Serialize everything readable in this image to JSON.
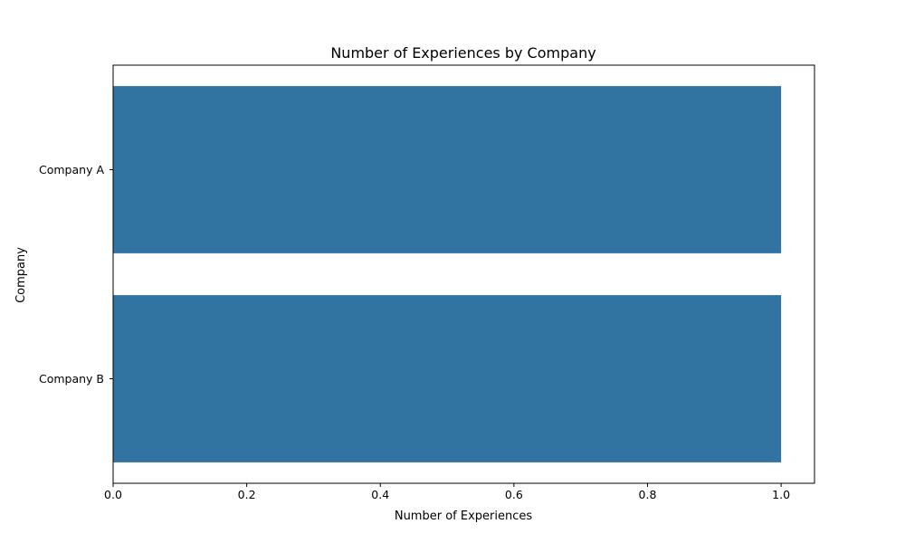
{
  "chart_data": {
    "type": "bar",
    "orientation": "horizontal",
    "title": "Number of Experiences by Company",
    "xlabel": "Number of Experiences",
    "ylabel": "Company",
    "categories": [
      "Company A",
      "Company B"
    ],
    "values": [
      1,
      1
    ],
    "xlim": [
      0,
      1.05
    ],
    "x_ticks": [
      0.0,
      0.2,
      0.4,
      0.6,
      0.8,
      1.0
    ],
    "x_tick_labels": [
      "0.0",
      "0.2",
      "0.4",
      "0.6",
      "0.8",
      "1.0"
    ],
    "grid": false,
    "legend": "none",
    "colors": {
      "bar": "#3274a1",
      "axis": "#000000",
      "background": "#ffffff"
    }
  }
}
